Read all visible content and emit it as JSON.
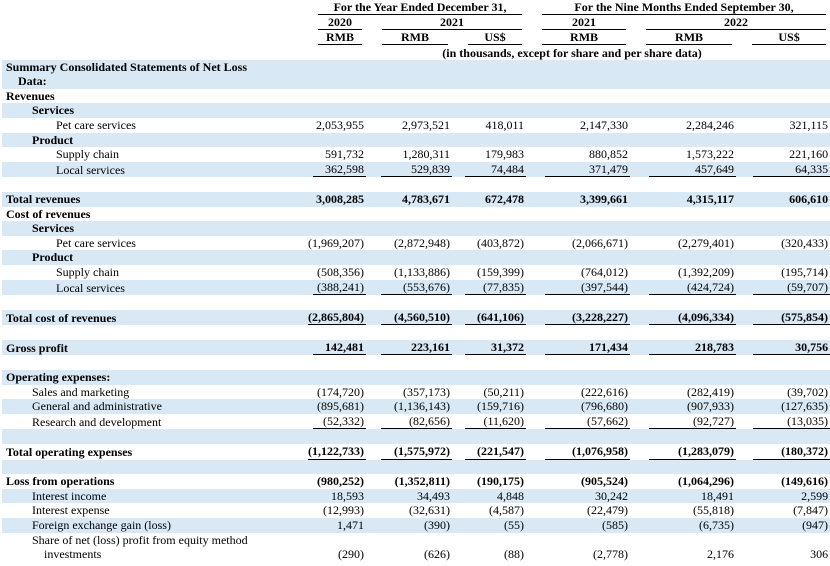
{
  "header": {
    "period_groups": [
      "For the Year Ended December 31,",
      "For the Nine Months Ended September 30,"
    ],
    "years": [
      "2020",
      "2021",
      "2021",
      "2022"
    ],
    "currencies": [
      "RMB",
      "RMB",
      "US$",
      "RMB",
      "RMB",
      "US$"
    ],
    "note": "(in thousands, except for share and per share data)"
  },
  "table": {
    "rows": [
      {
        "label": "Summary Consolidated Statements of Net Loss Data:"
      },
      {
        "label": "Revenues"
      },
      {
        "label": "Services"
      },
      {
        "label": "Pet care services",
        "values": [
          "2,053,955",
          "2,973,521",
          "418,011",
          "2,147,330",
          "2,284,246",
          "321,115"
        ]
      },
      {
        "label": "Product"
      },
      {
        "label": "Supply chain",
        "values": [
          "591,732",
          "1,280,311",
          "179,983",
          "880,852",
          "1,573,222",
          "221,160"
        ]
      },
      {
        "label": "Local services",
        "values": [
          "362,598",
          "529,839",
          "74,484",
          "371,479",
          "457,649",
          "64,335"
        ]
      },
      {
        "label": "Total revenues",
        "values": [
          "3,008,285",
          "4,783,671",
          "672,478",
          "3,399,661",
          "4,315,117",
          "606,610"
        ]
      },
      {
        "label": "Cost of revenues"
      },
      {
        "label": "Services"
      },
      {
        "label": "Pet care services",
        "values": [
          "(1,969,207)",
          "(2,872,948)",
          "(403,872)",
          "(2,066,671)",
          "(2,279,401)",
          "(320,433)"
        ]
      },
      {
        "label": "Product"
      },
      {
        "label": "Supply chain",
        "values": [
          "(508,356)",
          "(1,133,886)",
          "(159,399)",
          "(764,012)",
          "(1,392,209)",
          "(195,714)"
        ]
      },
      {
        "label": "Local services",
        "values": [
          "(388,241)",
          "(553,676)",
          "(77,835)",
          "(397,544)",
          "(424,724)",
          "(59,707)"
        ]
      },
      {
        "label": "Total cost of revenues",
        "values": [
          "(2,865,804)",
          "(4,560,510)",
          "(641,106)",
          "(3,228,227)",
          "(4,096,334)",
          "(575,854)"
        ]
      },
      {
        "label": "Gross profit",
        "values": [
          "142,481",
          "223,161",
          "31,372",
          "171,434",
          "218,783",
          "30,756"
        ]
      },
      {
        "label": "Operating expenses:"
      },
      {
        "label": "Sales and marketing",
        "values": [
          "(174,720)",
          "(357,173)",
          "(50,211)",
          "(222,616)",
          "(282,419)",
          "(39,702)"
        ]
      },
      {
        "label": "General and administrative",
        "values": [
          "(895,681)",
          "(1,136,143)",
          "(159,716)",
          "(796,680)",
          "(907,933)",
          "(127,635)"
        ]
      },
      {
        "label": "Research and development",
        "values": [
          "(52,332)",
          "(82,656)",
          "(11,620)",
          "(57,662)",
          "(92,727)",
          "(13,035)"
        ]
      },
      {
        "label": "Total operating expenses",
        "values": [
          "(1,122,733)",
          "(1,575,972)",
          "(221,547)",
          "(1,076,958)",
          "(1,283,079)",
          "(180,372)"
        ]
      },
      {
        "label": "Loss from operations",
        "values": [
          "(980,252)",
          "(1,352,811)",
          "(190,175)",
          "(905,524)",
          "(1,064,296)",
          "(149,616)"
        ]
      },
      {
        "label": "Interest income",
        "values": [
          "18,593",
          "34,493",
          "4,848",
          "30,242",
          "18,491",
          "2,599"
        ]
      },
      {
        "label": "Interest expense",
        "values": [
          "(12,993)",
          "(32,631)",
          "(4,587)",
          "(22,479)",
          "(55,818)",
          "(7,847)"
        ]
      },
      {
        "label": "Foreign exchange gain (loss)",
        "values": [
          "1,471",
          "(390)",
          "(55)",
          "(585)",
          "(6,735)",
          "(947)"
        ]
      },
      {
        "label": "Share of net (loss) profit from equity method investments",
        "values": [
          "(290)",
          "(626)",
          "(88)",
          "(2,778)",
          "2,176",
          "306"
        ]
      }
    ]
  }
}
